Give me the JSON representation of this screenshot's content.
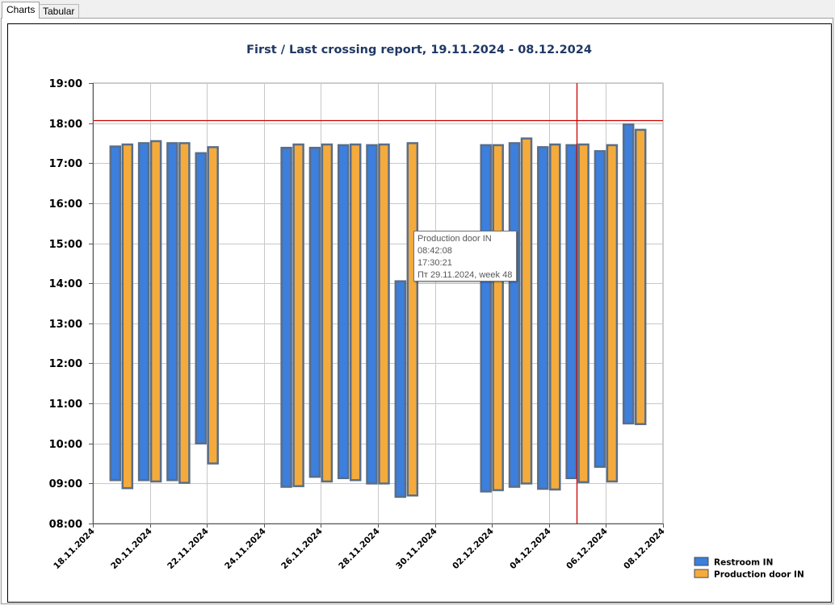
{
  "tabs": [
    {
      "label": "Charts",
      "active": true
    },
    {
      "label": "Tabular",
      "active": false
    }
  ],
  "chart_data": {
    "type": "floating-bar",
    "title": "First / Last crossing report, 19.11.2024 - 08.12.2024",
    "x_tick_labels": [
      "18.11.2024",
      "20.11.2024",
      "22.11.2024",
      "24.11.2024",
      "26.11.2024",
      "28.11.2024",
      "30.11.2024",
      "02.12.2024",
      "04.12.2024",
      "06.12.2024",
      "08.12.2024"
    ],
    "y_tick_labels": [
      "19:00",
      "18:00",
      "17:00",
      "16:00",
      "15:00",
      "14:00",
      "13:00",
      "12:00",
      "11:00",
      "10:00",
      "09:00",
      "08:00"
    ],
    "xlim": [
      "18.11.2024",
      "08.12.2024"
    ],
    "ylim_hours": [
      8,
      19
    ],
    "grid": true,
    "legend_position": "bottom-right",
    "reference_lines": {
      "horizontal_time": "18:05",
      "vertical_date": "05.12.2024",
      "color": "#cc0000"
    },
    "series": [
      {
        "name": "Restroom IN",
        "color": "#3c7fdc",
        "bars": [
          {
            "date": "19.11.2024",
            "start": "09:05",
            "end": "17:25"
          },
          {
            "date": "20.11.2024",
            "start": "09:05",
            "end": "17:30"
          },
          {
            "date": "21.11.2024",
            "start": "09:05",
            "end": "17:30"
          },
          {
            "date": "22.11.2024",
            "start": "10:00",
            "end": "17:15"
          },
          {
            "date": "25.11.2024",
            "start": "08:55",
            "end": "17:23"
          },
          {
            "date": "26.11.2024",
            "start": "09:10",
            "end": "17:23"
          },
          {
            "date": "27.11.2024",
            "start": "09:08",
            "end": "17:27"
          },
          {
            "date": "28.11.2024",
            "start": "09:00",
            "end": "17:27"
          },
          {
            "date": "29.11.2024",
            "start": "08:40",
            "end": "14:03"
          },
          {
            "date": "02.12.2024",
            "start": "08:48",
            "end": "17:27"
          },
          {
            "date": "03.12.2024",
            "start": "08:55",
            "end": "17:30"
          },
          {
            "date": "04.12.2024",
            "start": "08:52",
            "end": "17:24"
          },
          {
            "date": "05.12.2024",
            "start": "09:08",
            "end": "17:27"
          },
          {
            "date": "06.12.2024",
            "start": "09:25",
            "end": "17:18"
          },
          {
            "date": "07.12.2024",
            "start": "10:30",
            "end": "17:58"
          }
        ]
      },
      {
        "name": "Production door IN",
        "color": "#f5ab3c",
        "bars": [
          {
            "date": "19.11.2024",
            "start": "08:53",
            "end": "17:28"
          },
          {
            "date": "20.11.2024",
            "start": "09:03",
            "end": "17:33"
          },
          {
            "date": "21.11.2024",
            "start": "09:01",
            "end": "17:30"
          },
          {
            "date": "22.11.2024",
            "start": "09:30",
            "end": "17:24"
          },
          {
            "date": "25.11.2024",
            "start": "08:56",
            "end": "17:28"
          },
          {
            "date": "26.11.2024",
            "start": "09:03",
            "end": "17:28"
          },
          {
            "date": "27.11.2024",
            "start": "09:05",
            "end": "17:28"
          },
          {
            "date": "28.11.2024",
            "start": "09:00",
            "end": "17:28"
          },
          {
            "date": "29.11.2024",
            "start": "08:42",
            "end": "17:30"
          },
          {
            "date": "02.12.2024",
            "start": "08:50",
            "end": "17:27"
          },
          {
            "date": "03.12.2024",
            "start": "09:00",
            "end": "17:37"
          },
          {
            "date": "04.12.2024",
            "start": "08:51",
            "end": "17:28"
          },
          {
            "date": "05.12.2024",
            "start": "09:02",
            "end": "17:28"
          },
          {
            "date": "06.12.2024",
            "start": "09:03",
            "end": "17:27"
          },
          {
            "date": "07.12.2024",
            "start": "10:29",
            "end": "17:50"
          }
        ]
      }
    ]
  },
  "tooltip": {
    "series_name": "Production door IN",
    "start": "08:42:08",
    "end": "17:30:21",
    "date_label": "Пт 29.11.2024, week 48"
  }
}
